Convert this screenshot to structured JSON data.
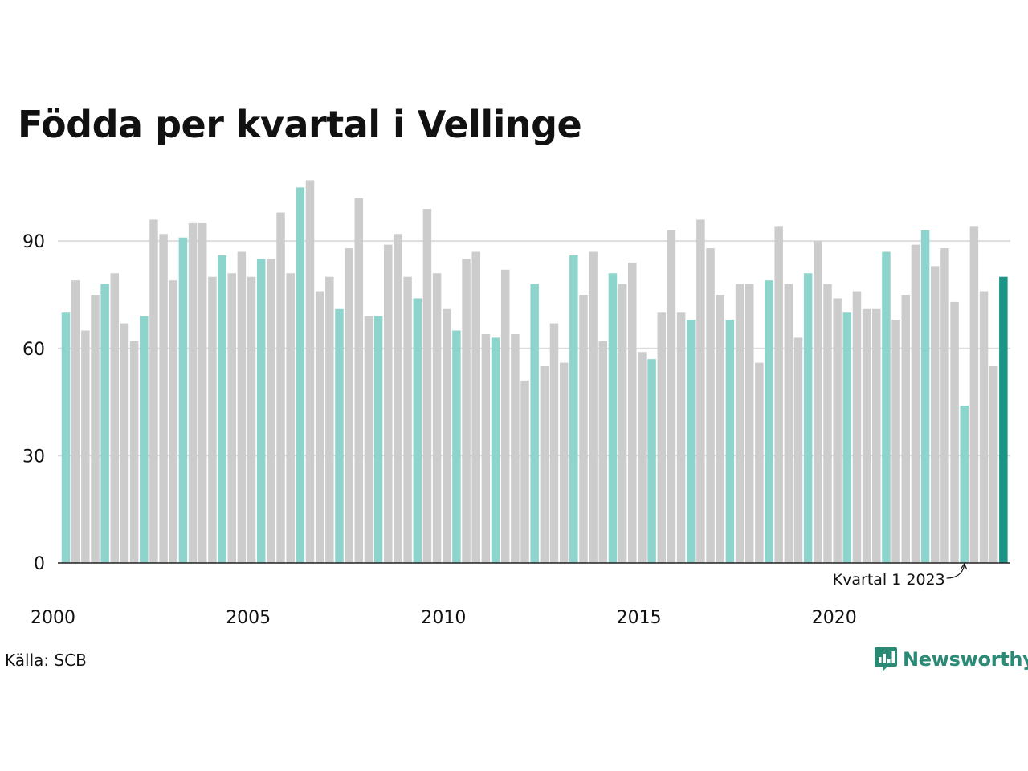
{
  "chart_data": {
    "type": "bar",
    "title": "Födda per kvartal i Vellinge",
    "xlabel": "",
    "ylabel": "",
    "ylim": [
      0,
      108
    ],
    "yticks": [
      0,
      30,
      60,
      90
    ],
    "xtick_labels": [
      {
        "label": "2000",
        "year": 2000
      },
      {
        "label": "2005",
        "year": 2005
      },
      {
        "label": "2010",
        "year": 2010
      },
      {
        "label": "2015",
        "year": 2015
      },
      {
        "label": "2020",
        "year": 2020
      }
    ],
    "grid": true,
    "start_year": 2000,
    "categories": [
      "2000 Q1",
      "2000 Q2",
      "2000 Q3",
      "2000 Q4",
      "2001 Q1",
      "2001 Q2",
      "2001 Q3",
      "2001 Q4",
      "2002 Q1",
      "2002 Q2",
      "2002 Q3",
      "2002 Q4",
      "2003 Q1",
      "2003 Q2",
      "2003 Q3",
      "2003 Q4",
      "2004 Q1",
      "2004 Q2",
      "2004 Q3",
      "2004 Q4",
      "2005 Q1",
      "2005 Q2",
      "2005 Q3",
      "2005 Q4",
      "2006 Q1",
      "2006 Q2",
      "2006 Q3",
      "2006 Q4",
      "2007 Q1",
      "2007 Q2",
      "2007 Q3",
      "2007 Q4",
      "2008 Q1",
      "2008 Q2",
      "2008 Q3",
      "2008 Q4",
      "2009 Q1",
      "2009 Q2",
      "2009 Q3",
      "2009 Q4",
      "2010 Q1",
      "2010 Q2",
      "2010 Q3",
      "2010 Q4",
      "2011 Q1",
      "2011 Q2",
      "2011 Q3",
      "2011 Q4",
      "2012 Q1",
      "2012 Q2",
      "2012 Q3",
      "2012 Q4",
      "2013 Q1",
      "2013 Q2",
      "2013 Q3",
      "2013 Q4",
      "2014 Q1",
      "2014 Q2",
      "2014 Q3",
      "2014 Q4",
      "2015 Q1",
      "2015 Q2",
      "2015 Q3",
      "2015 Q4",
      "2016 Q1",
      "2016 Q2",
      "2016 Q3",
      "2016 Q4",
      "2017 Q1",
      "2017 Q2",
      "2017 Q3",
      "2017 Q4",
      "2018 Q1",
      "2018 Q2",
      "2018 Q3",
      "2018 Q4",
      "2019 Q1",
      "2019 Q2",
      "2019 Q3",
      "2019 Q4",
      "2020 Q1",
      "2020 Q2",
      "2020 Q3",
      "2020 Q4",
      "2021 Q1",
      "2021 Q2",
      "2021 Q3",
      "2021 Q4",
      "2022 Q1",
      "2022 Q2",
      "2022 Q3",
      "2022 Q4",
      "2023 Q1",
      "2023 Q2",
      "2023 Q3",
      "2023 Q4",
      "2024 Q1"
    ],
    "values": [
      70,
      79,
      65,
      75,
      78,
      81,
      67,
      62,
      69,
      96,
      92,
      79,
      91,
      95,
      95,
      80,
      86,
      81,
      87,
      80,
      85,
      85,
      98,
      81,
      105,
      107,
      76,
      80,
      71,
      88,
      102,
      69,
      69,
      89,
      92,
      80,
      74,
      99,
      81,
      71,
      65,
      85,
      87,
      64,
      63,
      82,
      64,
      51,
      78,
      55,
      67,
      56,
      86,
      75,
      87,
      62,
      81,
      78,
      84,
      59,
      57,
      70,
      93,
      70,
      68,
      96,
      88,
      75,
      68,
      78,
      78,
      56,
      79,
      94,
      78,
      63,
      81,
      90,
      78,
      74,
      70,
      76,
      71,
      71,
      87,
      68,
      75,
      89,
      93,
      83,
      88,
      73,
      44,
      94,
      76,
      55,
      80
    ],
    "colors": {
      "q1": "#8dd5cc",
      "other": "#cccccc",
      "latest": "#1a9484",
      "grid": "#dddddd",
      "axis": "#222222"
    },
    "annotation": {
      "text": "Kvartal 1 2023",
      "target": "2023 Q1"
    }
  },
  "footer": {
    "source": "Källa: SCB",
    "brand": "Newsworthy",
    "brand_icon": "newsworthy-logo-icon"
  }
}
